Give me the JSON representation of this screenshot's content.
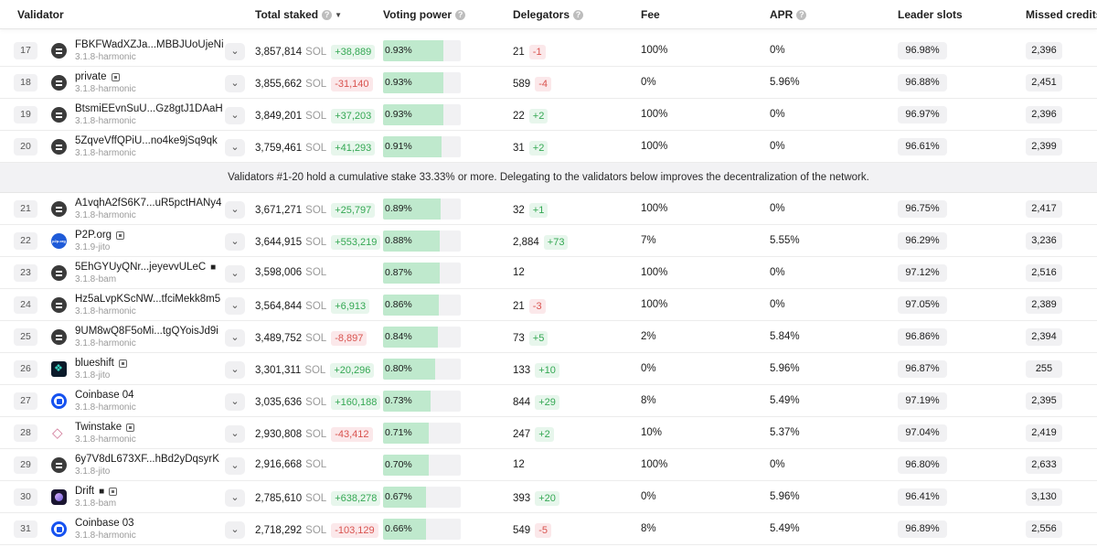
{
  "header": {
    "validator": "Validator",
    "total_staked": "Total staked",
    "voting_power": "Voting power",
    "delegators": "Delegators",
    "fee": "Fee",
    "apr": "APR",
    "leader_slots": "Leader slots",
    "missed_credits": "Missed credits"
  },
  "unit": "SOL",
  "notice": "Validators #1-20 hold a cumulative stake 33.33% or more. Delegating to the validators below improves the decentralization of the network.",
  "rows_top": [
    {
      "rank": "17",
      "name": "FBKFWadXZJa...MBBJUoUjeNi",
      "version": "3.1.8-harmonic",
      "avatar": "generic",
      "tag": false,
      "cube": false,
      "stake": "3,857,814",
      "stake_delta": "+38,889",
      "stake_delta_type": "pos",
      "vp": "0.93%",
      "vp_fill": 0.93,
      "deleg": "21",
      "deleg_delta": "-1",
      "deleg_delta_type": "neg",
      "fee": "100%",
      "apr": "0%",
      "leader": "96.98%",
      "missed": "2,396"
    },
    {
      "rank": "18",
      "name": "private",
      "version": "3.1.8-harmonic",
      "avatar": "generic",
      "tag": true,
      "cube": false,
      "stake": "3,855,662",
      "stake_delta": "-31,140",
      "stake_delta_type": "neg",
      "vp": "0.93%",
      "vp_fill": 0.93,
      "deleg": "589",
      "deleg_delta": "-4",
      "deleg_delta_type": "neg",
      "fee": "0%",
      "apr": "5.96%",
      "leader": "96.88%",
      "missed": "2,451"
    },
    {
      "rank": "19",
      "name": "BtsmiEEvnSuU...Gz8gtJ1DAaH",
      "version": "3.1.8-harmonic",
      "avatar": "generic",
      "tag": false,
      "cube": false,
      "stake": "3,849,201",
      "stake_delta": "+37,203",
      "stake_delta_type": "pos",
      "vp": "0.93%",
      "vp_fill": 0.93,
      "deleg": "22",
      "deleg_delta": "+2",
      "deleg_delta_type": "pos",
      "fee": "100%",
      "apr": "0%",
      "leader": "96.97%",
      "missed": "2,396"
    },
    {
      "rank": "20",
      "name": "5ZqveVffQPiU...no4ke9jSq9qk",
      "version": "3.1.8-harmonic",
      "avatar": "generic",
      "tag": false,
      "cube": false,
      "stake": "3,759,461",
      "stake_delta": "+41,293",
      "stake_delta_type": "pos",
      "vp": "0.91%",
      "vp_fill": 0.91,
      "deleg": "31",
      "deleg_delta": "+2",
      "deleg_delta_type": "pos",
      "fee": "100%",
      "apr": "0%",
      "leader": "96.61%",
      "missed": "2,399"
    }
  ],
  "rows_bottom": [
    {
      "rank": "21",
      "name": "A1vqhA2fS6K7...uR5pctHANy4",
      "version": "3.1.8-harmonic",
      "avatar": "generic",
      "tag": false,
      "cube": false,
      "stake": "3,671,271",
      "stake_delta": "+25,797",
      "stake_delta_type": "pos",
      "vp": "0.89%",
      "vp_fill": 0.89,
      "deleg": "32",
      "deleg_delta": "+1",
      "deleg_delta_type": "pos",
      "fee": "100%",
      "apr": "0%",
      "leader": "96.75%",
      "missed": "2,417"
    },
    {
      "rank": "22",
      "name": "P2P.org",
      "version": "3.1.9-jito",
      "avatar": "p2p",
      "tag": true,
      "cube": false,
      "stake": "3,644,915",
      "stake_delta": "+553,219",
      "stake_delta_type": "pos",
      "vp": "0.88%",
      "vp_fill": 0.88,
      "deleg": "2,884",
      "deleg_delta": "+73",
      "deleg_delta_type": "pos",
      "fee": "7%",
      "apr": "5.55%",
      "leader": "96.29%",
      "missed": "3,236"
    },
    {
      "rank": "23",
      "name": "5EhGYUyQNr...jeyevvULeC",
      "version": "3.1.8-bam",
      "avatar": "generic",
      "tag": false,
      "cube": true,
      "stake": "3,598,006",
      "stake_delta": "",
      "stake_delta_type": "",
      "vp": "0.87%",
      "vp_fill": 0.87,
      "deleg": "12",
      "deleg_delta": "",
      "deleg_delta_type": "",
      "fee": "100%",
      "apr": "0%",
      "leader": "97.12%",
      "missed": "2,516"
    },
    {
      "rank": "24",
      "name": "Hz5aLvpKScNW...tfciMekk8m5",
      "version": "3.1.8-harmonic",
      "avatar": "generic",
      "tag": false,
      "cube": false,
      "stake": "3,564,844",
      "stake_delta": "+6,913",
      "stake_delta_type": "pos",
      "vp": "0.86%",
      "vp_fill": 0.86,
      "deleg": "21",
      "deleg_delta": "-3",
      "deleg_delta_type": "neg",
      "fee": "100%",
      "apr": "0%",
      "leader": "97.05%",
      "missed": "2,389"
    },
    {
      "rank": "25",
      "name": "9UM8wQ8F5oMi...tgQYoisJd9i",
      "version": "3.1.8-harmonic",
      "avatar": "generic",
      "tag": false,
      "cube": false,
      "stake": "3,489,752",
      "stake_delta": "-8,897",
      "stake_delta_type": "neg",
      "vp": "0.84%",
      "vp_fill": 0.84,
      "deleg": "73",
      "deleg_delta": "+5",
      "deleg_delta_type": "pos",
      "fee": "2%",
      "apr": "5.84%",
      "leader": "96.86%",
      "missed": "2,394"
    },
    {
      "rank": "26",
      "name": "blueshift",
      "version": "3.1.8-jito",
      "avatar": "blueshift",
      "tag": true,
      "cube": false,
      "stake": "3,301,311",
      "stake_delta": "+20,296",
      "stake_delta_type": "pos",
      "vp": "0.80%",
      "vp_fill": 0.8,
      "deleg": "133",
      "deleg_delta": "+10",
      "deleg_delta_type": "pos",
      "fee": "0%",
      "apr": "5.96%",
      "leader": "96.87%",
      "missed": "255"
    },
    {
      "rank": "27",
      "name": "Coinbase 04",
      "version": "3.1.8-harmonic",
      "avatar": "coinbase",
      "tag": false,
      "cube": false,
      "stake": "3,035,636",
      "stake_delta": "+160,188",
      "stake_delta_type": "pos",
      "vp": "0.73%",
      "vp_fill": 0.73,
      "deleg": "844",
      "deleg_delta": "+29",
      "deleg_delta_type": "pos",
      "fee": "8%",
      "apr": "5.49%",
      "leader": "97.19%",
      "missed": "2,395"
    },
    {
      "rank": "28",
      "name": "Twinstake",
      "version": "3.1.8-harmonic",
      "avatar": "twinstake",
      "tag": true,
      "cube": false,
      "stake": "2,930,808",
      "stake_delta": "-43,412",
      "stake_delta_type": "neg",
      "vp": "0.71%",
      "vp_fill": 0.71,
      "deleg": "247",
      "deleg_delta": "+2",
      "deleg_delta_type": "pos",
      "fee": "10%",
      "apr": "5.37%",
      "leader": "97.04%",
      "missed": "2,419"
    },
    {
      "rank": "29",
      "name": "6y7V8dL673XF...hBd2yDqsyrK",
      "version": "3.1.8-jito",
      "avatar": "generic",
      "tag": false,
      "cube": false,
      "stake": "2,916,668",
      "stake_delta": "",
      "stake_delta_type": "",
      "vp": "0.70%",
      "vp_fill": 0.7,
      "deleg": "12",
      "deleg_delta": "",
      "deleg_delta_type": "",
      "fee": "100%",
      "apr": "0%",
      "leader": "96.80%",
      "missed": "2,633"
    },
    {
      "rank": "30",
      "name": "Drift",
      "version": "3.1.8-bam",
      "avatar": "drift",
      "tag": true,
      "cube": true,
      "stake": "2,785,610",
      "stake_delta": "+638,278",
      "stake_delta_type": "pos",
      "vp": "0.67%",
      "vp_fill": 0.67,
      "deleg": "393",
      "deleg_delta": "+20",
      "deleg_delta_type": "pos",
      "fee": "0%",
      "apr": "5.96%",
      "leader": "96.41%",
      "missed": "3,130"
    },
    {
      "rank": "31",
      "name": "Coinbase 03",
      "version": "3.1.8-harmonic",
      "avatar": "coinbase",
      "tag": false,
      "cube": false,
      "stake": "2,718,292",
      "stake_delta": "-103,129",
      "stake_delta_type": "neg",
      "vp": "0.66%",
      "vp_fill": 0.66,
      "deleg": "549",
      "deleg_delta": "-5",
      "deleg_delta_type": "neg",
      "fee": "8%",
      "apr": "5.49%",
      "leader": "96.89%",
      "missed": "2,556"
    }
  ]
}
